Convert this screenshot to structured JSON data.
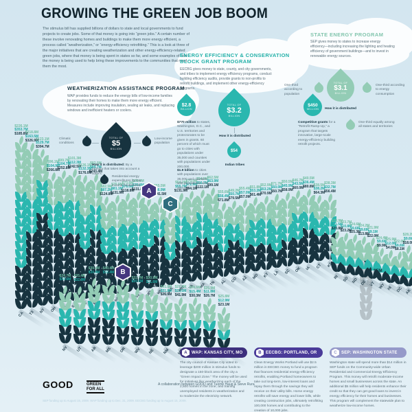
{
  "title": "GROWING THE GREEN JOB BOOM",
  "intro": "The stimulus bill has supplied billions of dollars to state and local governments to fund projects to create jobs. Some of that money is going into “green jobs.” A certain number of these involve renovating homes and buildings to make them more energy efficient, a process called “weatherization,” or “energy-efficiency retrofitting.” This is a look at three of the major initiatives that are creating weatherization and other energy-efficiency-related green jobs, where that money is being spent in states so far, and some examples of how the money is being used to help bring these improvements to the communities that need them the most.",
  "programs": {
    "wap": {
      "heading": "WEATHERIZATION ASSISTANCE PROGRAM",
      "body": "WAP provides funds to reduce the energy bills of low-income families by renovating their homes to make them more energy efficient. Measures include improving insulation, sealing air leaks, and replacing windows and inefficient heaters or coolers.",
      "left_label": "Climatic conditions",
      "right_label": "Low-income population",
      "total_prefix": "TOTAL OF",
      "total_value": "$5",
      "total_unit": "BILLION",
      "how_lead": "How it is distributed:",
      "how_rest": "By a formula that takes into account a state's:",
      "bottom_label": "Residential energy expenditures by low-income households"
    },
    "eecbg": {
      "heading": "ENERGY EFFICIENCY & CONSERVATION BLOCK GRANT PROGRAM",
      "body": "EECBG gives money to state, county, and city governments, and tribes to implement energy efficiency programs, conduct building efficiency audits, provide grants to non-profits to retrofit buildings, and implement other energy-efficiency programs.",
      "d28_value": "$2.8",
      "d28_unit": "BILLION",
      "total_prefix": "TOTAL OF",
      "total_value": "$3.2",
      "total_unit": "BILLION",
      "d450_value": "$450",
      "d450_unit": "MILLION",
      "d54_value": "$54",
      "d54_unit": "MILLION",
      "how": "How it is distributed",
      "tribes_label": "Indian tribes",
      "note1_lead": "$770 million",
      "note1_rest": "to states, Washington, D.C., and U.S. territories and protectorates to be given in grants. 60 percent of which must go to cities with populations under 35,000 and counties with populations under 200,000.",
      "note2_lead": "$1.9 billion",
      "note2_rest": "to cities with populations over 35,000 and counties with populations over 200,000.",
      "right_lead": "Competitive grants",
      "right_rest": "for a “Retrofit Ramp-Up,” a program that targets innovative, large-scale energy-efficiency building retrofit projects."
    },
    "sep": {
      "heading": "STATE ENERGY PROGRAM",
      "body": "SEP gives money to states to increase energy efficiency—including increasing the lighting and heating efficiency of government buildings—and to invest in renewable energy sources.",
      "left_label": "One-third according to population",
      "total_prefix": "TOTAL OF",
      "total_value": "$3.1",
      "total_unit": "BILLION",
      "how": "How it is distributed",
      "right_label": "One-third according to energy consumption",
      "bottom_label": "One-third equally among all states and territories"
    }
  },
  "legend": {
    "label": "$5M",
    "pairs": 7,
    "color": "#b6c2c8"
  },
  "badges": [
    {
      "letter": "A",
      "state": "MO",
      "color": "#45367f"
    },
    {
      "letter": "B",
      "state": "OR",
      "color": "#45367f"
    },
    {
      "letter": "C",
      "state": "WA",
      "color": "#2f6e7e"
    }
  ],
  "callouts": [
    {
      "letter": "A",
      "title": "WAP: KANSAS CITY, MO",
      "pill_color": "#3d2f7d",
      "body": "The city council of Kansas City voted to leverage $200 million in stimulus funds to designate a 150-block area of the city a “Green Impact Zone.” The money will be used for initiatives like weatherizing each of the 2,500 homes in the zone, and training unemployed residents in weatherization and to modernize the electricity network."
    },
    {
      "letter": "B",
      "title": "EECBG: PORTLAND, OR",
      "pill_color": "#4a3b99",
      "body": "Clean Energy Works Portland will use $2.5 million in EECBG money to fund a program that finances residential energy-efficiency retrofits, enabling Portland homeowners to take out long-term, low-interest loans and repay them through the savings they will receive on their utility bills. Home energy retrofits will save energy and lower bills, while creating construction jobs, ultimately retrofitting 100,000 homes and contributing to the creation of 10,000 jobs."
    },
    {
      "letter": "C",
      "title": "SEP: WASHINGTON STATE",
      "pill_color": "#9599c9",
      "body": "Washington state will spend more than $14 million in SEP funds on the Community-wide Urban Residential and Commercial Energy Efficiency Program. This money will retrofit moderate-income homes and small businesses across the state. An additional $5 million will help residents enhance their credit so that they can get good loans to invest in energy efficiency for their homes and businesses. This program will complement the statewide plan to weatherize low-income homes."
    }
  ],
  "footer": {
    "good": "GOOD",
    "gfa_line1": "GREEN",
    "gfa_line2": "FOR ALL",
    "collab": "A collaboration between GOOD and Tuome Haug & Steve Rura",
    "footnote": "SEP funding up to August 15, 2009. WAP funding up to Dec. 31, 2009. EECBG funding up to August 15, 2009."
  },
  "colors": {
    "sky": "#d8e8f1",
    "navy": "#17333f",
    "teal": "#2ab7af",
    "green": "#93ccb5",
    "purple": "#45367f",
    "periwinkle": "#9599c9"
  },
  "chart_data": {
    "type": "bar",
    "unit": "millions USD",
    "note": "Stacked wheat-stalk columns per state; one leaf ≈ $5M",
    "scale_label": "$5M",
    "series_legend": [
      {
        "name": "SEP",
        "color": "#93ccb5"
      },
      {
        "name": "EECBG",
        "color": "#2ab7af"
      },
      {
        "name": "WAP",
        "color": "#17333f"
      }
    ],
    "states": [
      {
        "abbr": "CA",
        "sep": 226.1,
        "eecbg": 353.7,
        "wap": 185.8,
        "group": 1
      },
      {
        "abbr": "TX",
        "sep": 218.8,
        "eecbg": 163.5,
        "wap": 326.9,
        "group": 1
      },
      {
        "abbr": "NY",
        "sep": 123.1,
        "eecbg": 129.7,
        "wap": 394.7,
        "group": 1
      },
      {
        "abbr": "OH",
        "sep": 96.1,
        "eecbg": 104.9,
        "wap": 266.8,
        "group": 1
      },
      {
        "abbr": "PA",
        "sep": 99.7,
        "eecbg": 104.7,
        "wap": 252.8,
        "group": 1
      },
      {
        "abbr": "IL",
        "sep": 101.3,
        "eecbg": 112.3,
        "wap": 242.5,
        "group": 1
      },
      {
        "abbr": "FL",
        "sep": 126.1,
        "eecbg": 132.3,
        "wap": 176.0,
        "group": 1
      },
      {
        "abbr": "MI",
        "sep": 82.0,
        "eecbg": 89.7,
        "wap": 243.4,
        "group": 1
      },
      {
        "abbr": "GA",
        "sep": 82.5,
        "eecbg": 87.2,
        "wap": 124.8,
        "group": 1
      },
      {
        "abbr": "NC",
        "sep": 75.9,
        "eecbg": 81.1,
        "wap": 131.9,
        "group": 1
      },
      {
        "abbr": "NJ",
        "sep": 73.6,
        "eecbg": 76.0,
        "wap": 118.8,
        "group": 1
      },
      {
        "abbr": "IN",
        "sep": 68.6,
        "eecbg": 70.8,
        "wap": 131.8,
        "group": 1
      },
      {
        "abbr": "MO",
        "sep": 57.4,
        "eecbg": 59.1,
        "wap": 128.1,
        "group": 1
      },
      {
        "abbr": "WI",
        "sep": 55.5,
        "eecbg": 56.9,
        "wap": 141.5,
        "group": 1
      },
      {
        "abbr": "WA",
        "sep": 60.9,
        "eecbg": 62.3,
        "wap": 59.6,
        "group": 1
      },
      {
        "abbr": "MN",
        "sep": 54.2,
        "eecbg": 55.7,
        "wap": 131.9,
        "group": 1
      },
      {
        "abbr": "VA",
        "sep": 70.0,
        "eecbg": 72.9,
        "wap": 94.1,
        "group": 1
      },
      {
        "abbr": "MA",
        "sep": 54.9,
        "eecbg": 56.7,
        "wap": 122.1,
        "group": 1
      },
      {
        "abbr": "TN",
        "sep": 62.5,
        "eecbg": 63.9,
        "wap": 99.1,
        "group": 1
      },
      {
        "abbr": "AL",
        "sep": 55.6,
        "eecbg": 56.4,
        "wap": 71.8,
        "group": 1
      },
      {
        "abbr": "CO",
        "sep": 49.2,
        "eecbg": 50.7,
        "wap": 79.5,
        "group": 1
      },
      {
        "abbr": "AZ",
        "sep": 55.4,
        "eecbg": 57.0,
        "wap": 57.0,
        "group": 1
      },
      {
        "abbr": "MD",
        "sep": 51.8,
        "eecbg": 53.2,
        "wap": 61.4,
        "group": 1
      },
      {
        "abbr": "KY",
        "sep": 52.9,
        "eecbg": 53.2,
        "wap": 70.9,
        "group": 1
      },
      {
        "abbr": "LA",
        "sep": 71.7,
        "eecbg": 50.0,
        "wap": 50.7,
        "group": 1
      },
      {
        "abbr": "SC",
        "sep": 50.5,
        "eecbg": 45.9,
        "wap": 58.9,
        "group": 1
      },
      {
        "abbr": "OK",
        "sep": 46.7,
        "eecbg": 43.5,
        "wap": 60.0,
        "group": 1
      },
      {
        "abbr": "IA",
        "sep": 40.5,
        "eecbg": 36.4,
        "wap": 80.8,
        "group": 1
      },
      {
        "abbr": "CT",
        "sep": 38.5,
        "eecbg": 38.2,
        "wap": 64.3,
        "group": 1
      },
      {
        "abbr": "KS",
        "sep": 38.3,
        "eecbg": 32.7,
        "wap": 56.4,
        "group": 1
      },
      {
        "abbr": "RI",
        "sep": 23.9,
        "eecbg": 11.5,
        "wap": 20.8,
        "group": 2
      },
      {
        "abbr": "SD",
        "sep": 23.7,
        "eecbg": 10.8,
        "wap": 23.2,
        "group": 2
      },
      {
        "abbr": "ND",
        "sep": 24.6,
        "eecbg": 9.6,
        "wap": 25.3,
        "group": 2
      },
      {
        "abbr": "DE",
        "sep": 24.2,
        "eecbg": 9.6,
        "wap": 13.8,
        "group": 2
      },
      {
        "abbr": "VT",
        "sep": 21.9,
        "eecbg": 9.1,
        "wap": 22.0,
        "group": 2
      },
      {
        "abbr": "WY",
        "sep": 24.4,
        "eecbg": 9.6,
        "wap": 9.9,
        "group": 2
      },
      {
        "abbr": "HI",
        "sep": 25.9,
        "eecbg": 12.0,
        "wap": 4.0,
        "group": 2
      },
      {
        "abbr": "DC",
        "sep": 22.0,
        "eecbg": 9.6,
        "wap": 8.1,
        "group": 2
      },
      {
        "abbr": "AK",
        "sep": 28.2,
        "eecbg": 9.6,
        "wap": 18.0,
        "group": 2
      },
      {
        "abbr": "NV",
        "sep": 34.7,
        "eecbg": 34.6,
        "wap": 37.3,
        "group": 3
      },
      {
        "abbr": "UT",
        "sep": 35.4,
        "eecbg": 32.9,
        "wap": 37.8,
        "group": 3
      },
      {
        "abbr": "AR",
        "sep": 39.4,
        "eecbg": 30.8,
        "wap": 53.6,
        "group": 3
      },
      {
        "abbr": "MS",
        "sep": 40.4,
        "eecbg": 32.4,
        "wap": 49.4,
        "group": 3
      },
      {
        "abbr": "OR",
        "sep": 42.2,
        "eecbg": 42.6,
        "wap": 38.5,
        "group": 3
      },
      {
        "abbr": "WV",
        "sep": 32.7,
        "eecbg": 20.5,
        "wap": 37.6,
        "group": 3
      },
      {
        "abbr": "NE",
        "sep": 30.9,
        "eecbg": 21.6,
        "wap": 42.1,
        "group": 3
      },
      {
        "abbr": "NM",
        "sep": 31.8,
        "eecbg": 21.8,
        "wap": 26.9,
        "group": 3
      },
      {
        "abbr": "ME",
        "sep": 27.3,
        "eecbg": 13.6,
        "wap": 41.9,
        "group": 3
      },
      {
        "abbr": "ID",
        "sep": 28.6,
        "eecbg": 15.4,
        "wap": 30.3,
        "group": 3
      },
      {
        "abbr": "MT",
        "sep": 25.9,
        "eecbg": 11.8,
        "wap": 26.7,
        "group": 3
      },
      {
        "abbr": "NH",
        "sep": 25.8,
        "eecbg": 12.9,
        "wap": 23.1,
        "group": 3
      }
    ]
  }
}
